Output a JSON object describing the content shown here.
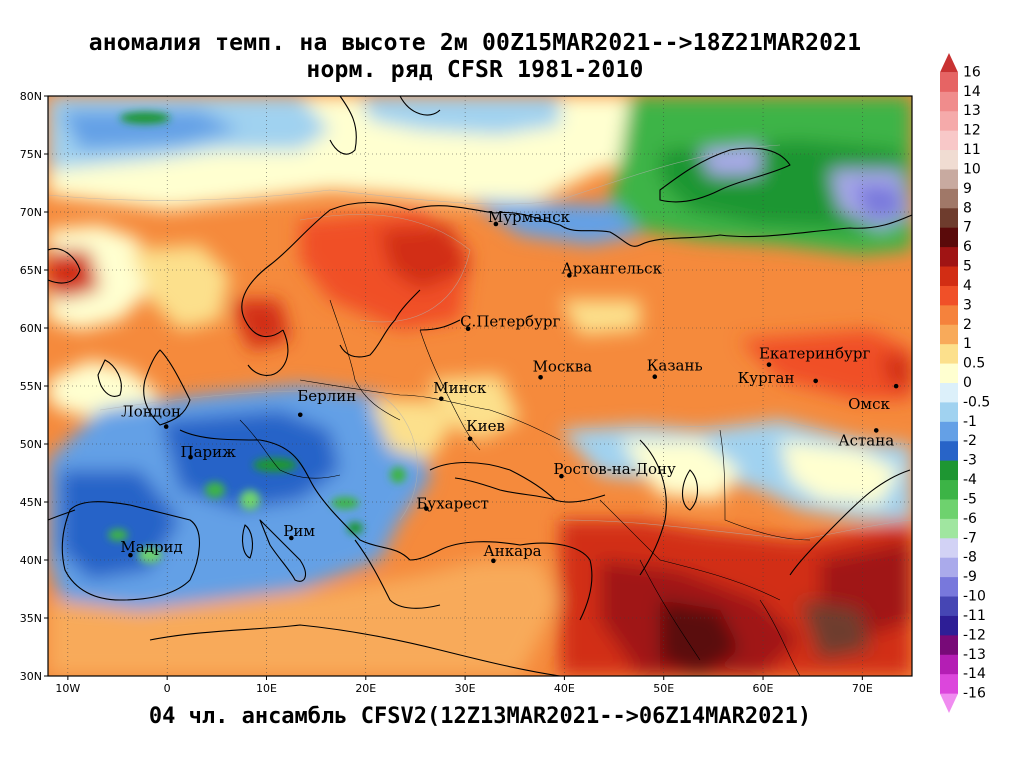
{
  "title_line1": "аномалия темп. на высоте 2м 00Z15MAR2021-->18Z21MAR2021",
  "title_line2": "норм. ряд CFSR 1981-2010",
  "footer": "04 чл. ансамбль CFSV2(12Z13MAR2021-->06Z14MAR2021)",
  "lat_labels": [
    "80N",
    "75N",
    "70N",
    "65N",
    "60N",
    "55N",
    "50N",
    "45N",
    "40N",
    "35N",
    "30N"
  ],
  "lon_labels": [
    "10W",
    "0",
    "10E",
    "20E",
    "30E",
    "40E",
    "50E",
    "60E",
    "70E"
  ],
  "cities": [
    {
      "name": "Мурманск",
      "lon": 33.1,
      "lat": 68.97
    },
    {
      "name": "Архангельск",
      "lon": 40.5,
      "lat": 64.54
    },
    {
      "name": "С.Петербург",
      "lon": 30.3,
      "lat": 59.94
    },
    {
      "name": "Москва",
      "lon": 37.6,
      "lat": 55.75
    },
    {
      "name": "Казань",
      "lon": 49.1,
      "lat": 55.8
    },
    {
      "name": "Екатеринбург",
      "lon": 60.6,
      "lat": 56.84
    },
    {
      "name": "Курган",
      "lon": 65.3,
      "lat": 55.44
    },
    {
      "name": "Омск",
      "lon": 73.4,
      "lat": 54.99
    },
    {
      "name": "Астана",
      "lon": 71.4,
      "lat": 51.17
    },
    {
      "name": "Минск",
      "lon": 27.6,
      "lat": 53.9
    },
    {
      "name": "Киев",
      "lon": 30.5,
      "lat": 50.45
    },
    {
      "name": "Ростов-на-Дону",
      "lon": 39.7,
      "lat": 47.23
    },
    {
      "name": "Берлин",
      "lon": 13.4,
      "lat": 52.52
    },
    {
      "name": "Лондон",
      "lon": -0.1,
      "lat": 51.5
    },
    {
      "name": "Париж",
      "lon": 2.35,
      "lat": 48.86
    },
    {
      "name": "Бухарест",
      "lon": 26.1,
      "lat": 44.43
    },
    {
      "name": "Рим",
      "lon": 12.5,
      "lat": 41.9
    },
    {
      "name": "Мадрид",
      "lon": -3.7,
      "lat": 40.42
    },
    {
      "name": "Анкара",
      "lon": 32.85,
      "lat": 39.93
    }
  ],
  "colorbar": {
    "levels": [
      "16",
      "14",
      "13",
      "12",
      "11",
      "10",
      "9",
      "8",
      "7",
      "6",
      "5",
      "4",
      "3",
      "2",
      "1",
      "0.5",
      "0",
      "-0.5",
      "-1",
      "-2",
      "-3",
      "-4",
      "-5",
      "-6",
      "-7",
      "-8",
      "-9",
      "-10",
      "-11",
      "-12",
      "-13",
      "-14",
      "-16"
    ],
    "colors": [
      "#c83232",
      "#e66464",
      "#f08c8c",
      "#f5aaaa",
      "#f8c8c8",
      "#f0dcd2",
      "#c8aaa0",
      "#a07868",
      "#6e3c2d",
      "#5a0a0a",
      "#a01414",
      "#d22d14",
      "#f05028",
      "#f5823c",
      "#f8aa5a",
      "#fce08c",
      "#ffffd0",
      "#dcf0fa",
      "#a0d2f0",
      "#64a0e6",
      "#2864c8",
      "#1e9632",
      "#3cb446",
      "#6ed26e",
      "#a0e6a0",
      "#d2d2f5",
      "#aaaaeb",
      "#7878dc",
      "#4646b4",
      "#2d1e96",
      "#780a78",
      "#b41eb4",
      "#dc46dc",
      "#f08cf0"
    ]
  }
}
